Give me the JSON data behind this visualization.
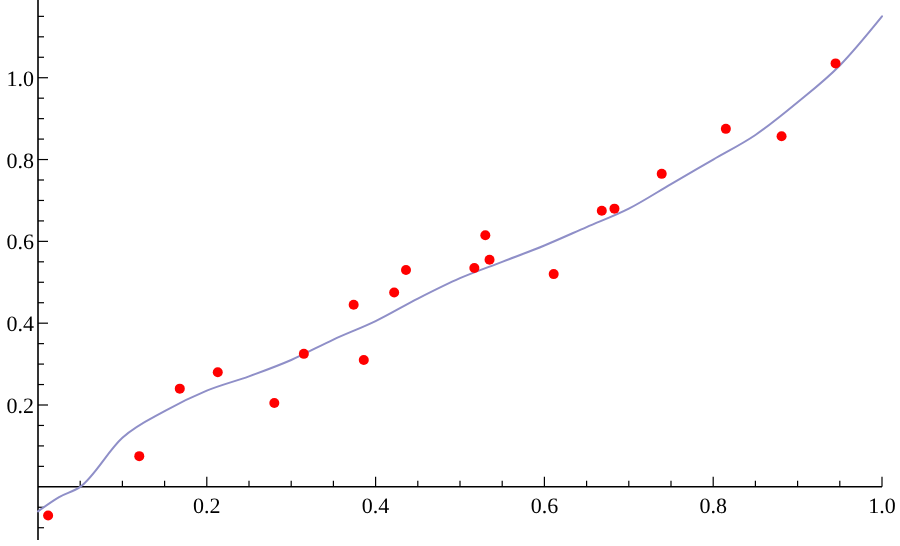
{
  "chart_data": {
    "type": "scatter",
    "xlim": [
      0,
      1.0
    ],
    "ylim": [
      -0.13,
      1.19
    ],
    "xticks": [
      {
        "value": 0.05,
        "label": null
      },
      {
        "value": 0.1,
        "label": null
      },
      {
        "value": 0.15,
        "label": null
      },
      0.2,
      {
        "value": 0.25,
        "label": null
      },
      {
        "value": 0.3,
        "label": null
      },
      {
        "value": 0.35,
        "label": null
      },
      0.4,
      {
        "value": 0.45,
        "label": null
      },
      {
        "value": 0.5,
        "label": null
      },
      {
        "value": 0.55,
        "label": null
      },
      0.6,
      {
        "value": 0.65,
        "label": null
      },
      {
        "value": 0.7,
        "label": null
      },
      {
        "value": 0.75,
        "label": null
      },
      0.8,
      {
        "value": 0.85,
        "label": null
      },
      {
        "value": 0.9,
        "label": null
      },
      {
        "value": 0.95,
        "label": null
      },
      {
        "value": 1,
        "label": "1.0"
      }
    ],
    "yticks": [
      {
        "value": -0.1,
        "label": null
      },
      {
        "value": -0.05,
        "label": null
      },
      {
        "value": 0.05,
        "label": null
      },
      {
        "value": 0.1,
        "label": null
      },
      {
        "value": 0.15,
        "label": null
      },
      0.2,
      {
        "value": 0.25,
        "label": null
      },
      {
        "value": 0.3,
        "label": null
      },
      {
        "value": 0.35,
        "label": null
      },
      0.4,
      {
        "value": 0.45,
        "label": null
      },
      {
        "value": 0.5,
        "label": null
      },
      {
        "value": 0.55,
        "label": null
      },
      0.6,
      {
        "value": 0.65,
        "label": null
      },
      {
        "value": 0.7,
        "label": null
      },
      {
        "value": 0.75,
        "label": null
      },
      0.8,
      {
        "value": 0.85,
        "label": null
      },
      {
        "value": 0.9,
        "label": null
      },
      {
        "value": 0.95,
        "label": null
      },
      {
        "value": 1,
        "label": "1.0"
      },
      {
        "value": 1.05,
        "label": null
      },
      {
        "value": 1.1,
        "label": null
      },
      {
        "value": 1.15,
        "label": null
      }
    ],
    "grid": false,
    "series": [
      {
        "type": "line",
        "color": "#8f8fc8",
        "marker": "none",
        "line_style": "solid",
        "x": [
          0,
          0.025,
          0.05,
          0.1,
          0.15,
          0.2,
          0.25,
          0.3,
          0.35,
          0.4,
          0.45,
          0.5,
          0.55,
          0.6,
          0.65,
          0.7,
          0.75,
          0.8,
          0.85,
          0.9,
          0.95,
          1.0
        ],
        "values": [
          -0.06,
          -0.025,
          0.0,
          0.12,
          0.185,
          0.235,
          0.27,
          0.31,
          0.36,
          0.405,
          0.46,
          0.51,
          0.55,
          0.59,
          0.635,
          0.68,
          0.74,
          0.8,
          0.86,
          0.94,
          1.03,
          1.15
        ]
      },
      {
        "color": "#ff0000",
        "marker": "circle",
        "x": [
          0.012,
          0.12,
          0.168,
          0.213,
          0.28,
          0.315,
          0.374,
          0.386,
          0.422,
          0.436,
          0.517,
          0.53,
          0.535,
          0.611,
          0.668,
          0.683,
          0.739,
          0.815,
          0.881,
          0.945
        ],
        "values": [
          -0.07,
          0.075,
          0.24,
          0.28,
          0.205,
          0.325,
          0.445,
          0.31,
          0.475,
          0.53,
          0.535,
          0.615,
          0.555,
          0.52,
          0.675,
          0.68,
          0.765,
          0.875,
          0.857,
          1.035
        ]
      }
    ]
  }
}
